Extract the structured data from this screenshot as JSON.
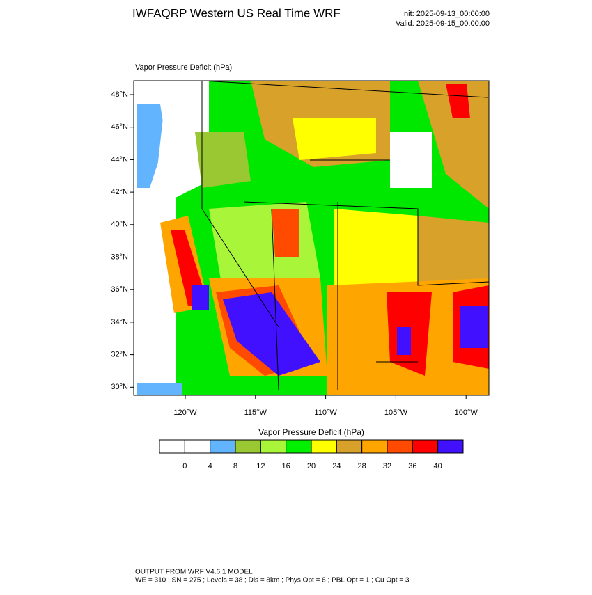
{
  "header": {
    "title": "IWFAQRP Western US Real Time WRF",
    "init": "Init: 2025-09-13_00:00:00",
    "valid": "Valid: 2025-09-15_00:00:00"
  },
  "map": {
    "label": "Vapor Pressure Deficit   (hPa)",
    "lat_labels": [
      "48°N",
      "46°N",
      "44°N",
      "42°N",
      "40°N",
      "38°N",
      "36°N",
      "34°N",
      "32°N",
      "30°N"
    ],
    "lon_labels": [
      "120°W",
      "115°W",
      "110°W",
      "105°W",
      "100°W"
    ]
  },
  "colorbar": {
    "title": "Vapor Pressure Deficit  (hPa)",
    "levels": [
      0,
      4,
      8,
      12,
      16,
      20,
      24,
      28,
      32,
      36,
      40
    ],
    "colors": [
      "#ffffff",
      "#ffffff",
      "#63b4ff",
      "#9ac832",
      "#a8f53a",
      "#00f000",
      "#ffff00",
      "#d8a22a",
      "#ffa500",
      "#ff4a00",
      "#ff0000",
      "#4010ff"
    ]
  },
  "footer": {
    "line1": "OUTPUT FROM WRF V4.6.1 MODEL",
    "line2": "WE = 310 ; SN = 275 ; Levels = 38 ; Dis = 8km ; Phys Opt = 8 ; PBL Opt = 1 ; Cu Opt = 3"
  }
}
